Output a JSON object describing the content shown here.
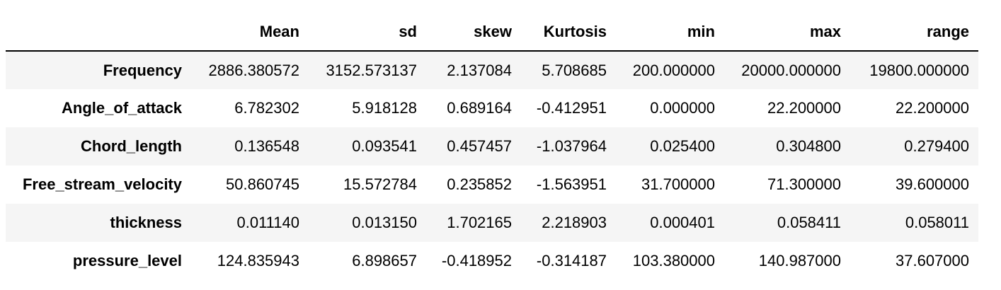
{
  "table": {
    "index_header": "",
    "columns": [
      "Mean",
      "sd",
      "skew",
      "Kurtosis",
      "min",
      "max",
      "range"
    ],
    "rows": [
      {
        "label": "Frequency",
        "values": [
          "2886.380572",
          "3152.573137",
          "2.137084",
          "5.708685",
          "200.000000",
          "20000.000000",
          "19800.000000"
        ]
      },
      {
        "label": "Angle_of_attack",
        "values": [
          "6.782302",
          "5.918128",
          "0.689164",
          "-0.412951",
          "0.000000",
          "22.200000",
          "22.200000"
        ]
      },
      {
        "label": "Chord_length",
        "values": [
          "0.136548",
          "0.093541",
          "0.457457",
          "-1.037964",
          "0.025400",
          "0.304800",
          "0.279400"
        ]
      },
      {
        "label": "Free_stream_velocity",
        "values": [
          "50.860745",
          "15.572784",
          "0.235852",
          "-1.563951",
          "31.700000",
          "71.300000",
          "39.600000"
        ]
      },
      {
        "label": "thickness",
        "values": [
          "0.011140",
          "0.013150",
          "1.702165",
          "2.218903",
          "0.000401",
          "0.058411",
          "0.058011"
        ]
      },
      {
        "label": "pressure_level",
        "values": [
          "124.835943",
          "6.898657",
          "-0.418952",
          "-0.314187",
          "103.380000",
          "140.987000",
          "37.607000"
        ]
      }
    ]
  }
}
